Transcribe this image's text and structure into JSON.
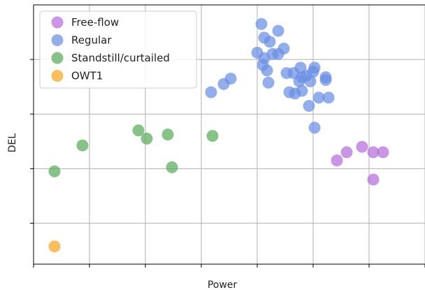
{
  "chart_data": {
    "type": "scatter",
    "xlabel": "Power",
    "ylabel": "DEL",
    "xlim": [
      0,
      14
    ],
    "ylim": [
      0,
      9.5
    ],
    "xtick_values": [
      0,
      2,
      4,
      6,
      8,
      10,
      12,
      14
    ],
    "ytick_values": [
      1.5,
      3.5,
      5.5,
      7.5
    ],
    "xtick_labels": [
      "",
      "",
      "",
      "",
      "",
      "",
      "",
      ""
    ],
    "ytick_labels": [
      "",
      "",
      "",
      ""
    ],
    "grid": true,
    "legend": {
      "placement": "top-left"
    },
    "series": [
      {
        "name": "Free-flow",
        "color": "#b36ed9",
        "points": [
          [
            10.85,
            3.8
          ],
          [
            11.2,
            4.1
          ],
          [
            11.75,
            4.3
          ],
          [
            12.15,
            4.1
          ],
          [
            12.5,
            4.1
          ],
          [
            12.15,
            3.1
          ]
        ]
      },
      {
        "name": "Regular",
        "color": "#6b8fe3",
        "points": [
          [
            8.15,
            8.8
          ],
          [
            8.25,
            8.3
          ],
          [
            8.45,
            8.15
          ],
          [
            8.75,
            8.55
          ],
          [
            8.0,
            7.75
          ],
          [
            8.25,
            7.55
          ],
          [
            8.55,
            7.7
          ],
          [
            8.95,
            7.9
          ],
          [
            8.75,
            7.7
          ],
          [
            8.2,
            7.3
          ],
          [
            8.35,
            7.1
          ],
          [
            8.4,
            6.65
          ],
          [
            9.05,
            7.0
          ],
          [
            9.3,
            7.0
          ],
          [
            9.55,
            7.2
          ],
          [
            9.6,
            6.85
          ],
          [
            9.75,
            6.9
          ],
          [
            9.5,
            6.7
          ],
          [
            9.9,
            6.7
          ],
          [
            10.05,
            7.2
          ],
          [
            10.0,
            7.05
          ],
          [
            10.45,
            6.75
          ],
          [
            10.45,
            6.85
          ],
          [
            9.15,
            6.3
          ],
          [
            9.35,
            6.25
          ],
          [
            9.6,
            6.35
          ],
          [
            9.85,
            5.8
          ],
          [
            10.2,
            6.1
          ],
          [
            10.55,
            6.1
          ],
          [
            6.35,
            6.3
          ],
          [
            6.8,
            6.6
          ],
          [
            7.05,
            6.8
          ],
          [
            10.05,
            5.0
          ]
        ]
      },
      {
        "name": "Standstill/curtailed",
        "color": "#5aab5a",
        "points": [
          [
            0.75,
            3.4
          ],
          [
            1.75,
            4.35
          ],
          [
            3.75,
            4.9
          ],
          [
            4.05,
            4.6
          ],
          [
            4.8,
            4.75
          ],
          [
            4.95,
            3.55
          ],
          [
            6.4,
            4.7
          ]
        ]
      },
      {
        "name": "OWT1",
        "color": "#f5a623",
        "points": [
          [
            0.75,
            0.65
          ]
        ]
      }
    ]
  }
}
